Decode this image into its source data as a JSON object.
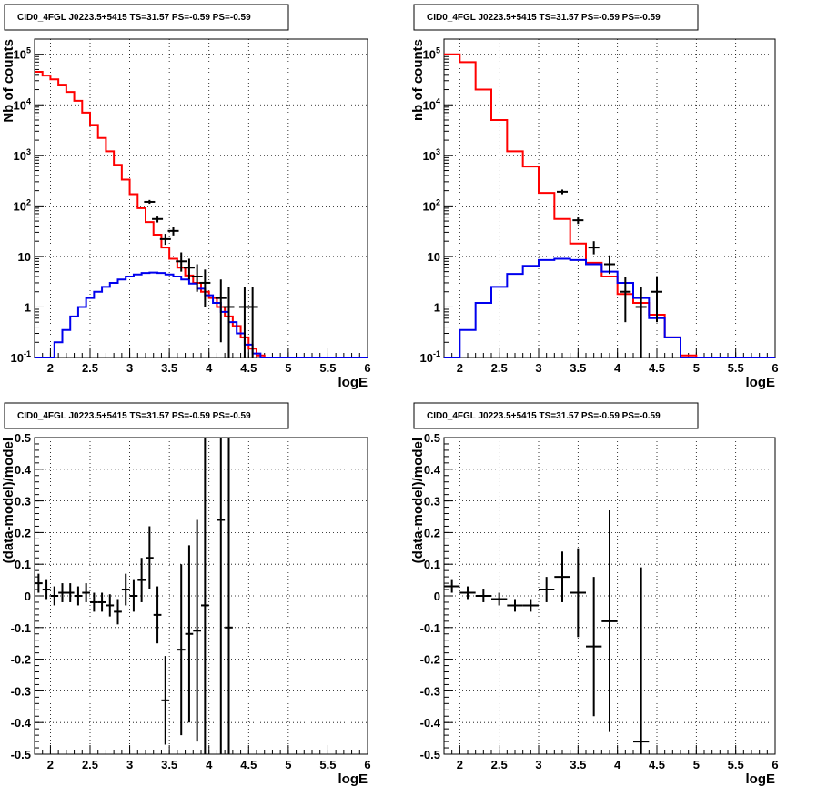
{
  "chart_data": [
    {
      "type": "line",
      "title": "CID0_4FGL J0223.5+5415 TS=31.57 PS=-0.59 PS=-0.59",
      "xlabel": "logE",
      "ylabel": "Nb of counts",
      "log_y": true,
      "xlim": [
        1.8,
        6
      ],
      "ylim": [
        0.1,
        200000
      ],
      "grid": true,
      "x_ticks": [
        "2",
        "2.5",
        "3",
        "3.5",
        "4",
        "4.5",
        "5",
        "5.5",
        "6"
      ],
      "y_ticks": [
        "10^-1",
        "1",
        "10",
        "10^2",
        "10^3",
        "10^4",
        "10^5"
      ],
      "series": [
        {
          "style": "step",
          "color": "#ff0000",
          "bin_edges": [
            1.8,
            1.9,
            2.0,
            2.1,
            2.2,
            2.3,
            2.4,
            2.5,
            2.6,
            2.7,
            2.8,
            2.9,
            3.0,
            3.1,
            3.2,
            3.3,
            3.4,
            3.5,
            3.6,
            3.7,
            3.8,
            3.9,
            4.0,
            4.1,
            4.2,
            4.3,
            4.4,
            4.5,
            4.6,
            4.7,
            4.8,
            4.9,
            5.0,
            6.0
          ],
          "values": [
            45000,
            38000,
            32000,
            25000,
            18000,
            12000,
            7000,
            4000,
            2200,
            1200,
            650,
            330,
            170,
            90,
            48,
            27,
            15,
            9,
            6,
            4.2,
            3.0,
            2.0,
            1.5,
            1.0,
            0.65,
            0.42,
            0.25,
            0.15,
            0.11,
            0.1,
            0.1,
            0.1,
            0.1
          ]
        },
        {
          "style": "step",
          "color": "#0000ee",
          "bin_edges": [
            1.8,
            2.0,
            2.05,
            2.15,
            2.25,
            2.35,
            2.45,
            2.55,
            2.65,
            2.75,
            2.85,
            2.95,
            3.05,
            3.15,
            3.25,
            3.35,
            3.45,
            3.55,
            3.65,
            3.75,
            3.85,
            3.95,
            4.05,
            4.15,
            4.25,
            4.35,
            4.45,
            4.55,
            4.65,
            4.75,
            4.85,
            6.0
          ],
          "values": [
            0.1,
            0.1,
            0.2,
            0.35,
            0.65,
            1.0,
            1.5,
            2.0,
            2.5,
            3.0,
            3.5,
            4.0,
            4.4,
            4.7,
            4.8,
            4.7,
            4.4,
            4.0,
            3.5,
            2.9,
            2.3,
            1.7,
            1.2,
            0.8,
            0.5,
            0.3,
            0.18,
            0.12,
            0.1,
            0.1,
            0.1
          ]
        },
        {
          "style": "errorbar",
          "color": "#000000",
          "x": [
            3.25,
            3.35,
            3.45,
            3.55,
            3.65,
            3.75,
            3.85,
            3.95,
            4.15,
            4.25,
            4.45,
            4.55
          ],
          "y": [
            120,
            55,
            22,
            32,
            8,
            6,
            4,
            3,
            1.5,
            1,
            1,
            1
          ],
          "yerr_low": [
            10,
            8,
            5,
            6,
            3,
            2.5,
            2,
            2,
            1.3,
            0.95,
            0.95,
            0.95
          ],
          "yerr_high": [
            11,
            9,
            6,
            7,
            4,
            3,
            3,
            2.5,
            2,
            1.5,
            1.5,
            1.5
          ]
        }
      ]
    },
    {
      "type": "line",
      "title": "CID0_4FGL J0223.5+5415 TS=31.57 PS=-0.59 PS=-0.59",
      "xlabel": "logE",
      "ylabel": "nb of counts",
      "log_y": true,
      "xlim": [
        1.8,
        6
      ],
      "ylim": [
        0.1,
        200000
      ],
      "grid": true,
      "x_ticks": [
        "2",
        "2.5",
        "3",
        "3.5",
        "4",
        "4.5",
        "5",
        "5.5",
        "6"
      ],
      "y_ticks": [
        "10^-1",
        "1",
        "10",
        "10^2",
        "10^3",
        "10^4",
        "10^5"
      ],
      "series": [
        {
          "style": "step",
          "color": "#ff0000",
          "bin_edges": [
            1.8,
            2.0,
            2.2,
            2.4,
            2.6,
            2.8,
            3.0,
            3.2,
            3.4,
            3.6,
            3.8,
            4.0,
            4.2,
            4.4,
            4.6,
            4.8,
            5.0,
            6.0
          ],
          "values": [
            100000,
            70000,
            20000,
            5000,
            1200,
            600,
            180,
            55,
            18,
            7.5,
            4,
            1.8,
            1.2,
            0.7,
            0.25,
            0.11,
            0.1
          ]
        },
        {
          "style": "step",
          "color": "#0000ee",
          "bin_edges": [
            1.8,
            2.0,
            2.2,
            2.4,
            2.6,
            2.8,
            3.0,
            3.2,
            3.4,
            3.6,
            3.8,
            4.0,
            4.2,
            4.4,
            4.6,
            4.8,
            5.0,
            6.0
          ],
          "values": [
            0.1,
            0.35,
            1.2,
            2.5,
            4.5,
            6.5,
            8.5,
            9.0,
            8.5,
            7.0,
            5.0,
            3.0,
            1.5,
            0.6,
            0.25,
            0.1,
            0.1
          ]
        },
        {
          "style": "errorbar",
          "color": "#000000",
          "x": [
            3.3,
            3.5,
            3.7,
            3.9,
            4.1,
            4.3,
            4.5
          ],
          "y": [
            190,
            52,
            15,
            7,
            2,
            1,
            2
          ],
          "yerr_low": [
            20,
            8,
            4,
            2.5,
            1.5,
            0.95,
            1.5
          ],
          "yerr_high": [
            20,
            8,
            5,
            3.5,
            2,
            1.5,
            2
          ]
        }
      ]
    },
    {
      "type": "scatter",
      "title": "CID0_4FGL J0223.5+5415 TS=31.57 PS=-0.59 PS=-0.59",
      "xlabel": "logE",
      "ylabel": "(data-model)/model",
      "xlim": [
        1.8,
        6
      ],
      "ylim": [
        -0.5,
        0.5
      ],
      "grid": true,
      "x_ticks": [
        "2",
        "2.5",
        "3",
        "3.5",
        "4",
        "4.5",
        "5",
        "5.5",
        "6"
      ],
      "y_ticks": [
        "-0.5",
        "-0.4",
        "-0.3",
        "-0.2",
        "-0.1",
        "0",
        "0.1",
        "0.2",
        "0.3",
        "0.4",
        "0.5"
      ],
      "series": [
        {
          "style": "errorbar",
          "color": "#000000",
          "x": [
            1.85,
            1.95,
            2.05,
            2.15,
            2.25,
            2.35,
            2.45,
            2.55,
            2.65,
            2.75,
            2.85,
            2.95,
            3.05,
            3.15,
            3.25,
            3.35,
            3.45,
            3.65,
            3.75,
            3.85,
            3.95,
            4.15,
            4.25
          ],
          "y": [
            0.04,
            0.02,
            0.0,
            0.01,
            0.01,
            0.0,
            0.01,
            -0.02,
            -0.02,
            -0.03,
            -0.05,
            0.02,
            0.0,
            0.05,
            0.12,
            -0.06,
            -0.33,
            -0.17,
            -0.12,
            -0.11,
            -0.03,
            0.24,
            -0.1
          ],
          "xerr": 0.05,
          "yerr": [
            0.03,
            0.03,
            0.03,
            0.03,
            0.03,
            0.03,
            0.03,
            0.03,
            0.03,
            0.035,
            0.04,
            0.05,
            0.05,
            0.07,
            0.1,
            0.09,
            0.14,
            0.27,
            0.28,
            0.35,
            0.55,
            0.8,
            0.8
          ]
        }
      ]
    },
    {
      "type": "scatter",
      "title": "CID0_4FGL J0223.5+5415 TS=31.57 PS=-0.59 PS=-0.59",
      "xlabel": "logE",
      "ylabel": "(data-model)/model",
      "xlim": [
        1.8,
        6
      ],
      "ylim": [
        -0.5,
        0.5
      ],
      "grid": true,
      "x_ticks": [
        "2",
        "2.5",
        "3",
        "3.5",
        "4",
        "4.5",
        "5",
        "5.5",
        "6"
      ],
      "y_ticks": [
        "-0.5",
        "-0.4",
        "-0.3",
        "-0.2",
        "-0.1",
        "0",
        "0.1",
        "0.2",
        "0.3",
        "0.4",
        "0.5"
      ],
      "series": [
        {
          "style": "errorbar",
          "color": "#000000",
          "x": [
            1.9,
            2.1,
            2.3,
            2.5,
            2.7,
            2.9,
            3.1,
            3.3,
            3.5,
            3.7,
            3.9,
            4.3
          ],
          "y": [
            0.03,
            0.01,
            0.0,
            -0.01,
            -0.03,
            -0.03,
            0.02,
            0.06,
            0.01,
            -0.16,
            -0.08,
            -0.46
          ],
          "xerr": 0.1,
          "yerr": [
            0.02,
            0.02,
            0.02,
            0.02,
            0.02,
            0.02,
            0.04,
            0.08,
            0.14,
            0.22,
            0.35,
            0.55
          ]
        }
      ]
    }
  ]
}
